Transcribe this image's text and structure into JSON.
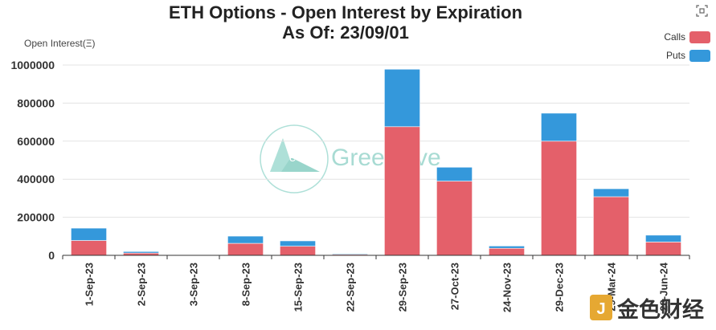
{
  "chart_data": {
    "type": "bar",
    "stacked": true,
    "title": "ETH Options - Open Interest by Expiration",
    "subtitle": "As Of: 23/09/01",
    "ylabel": "Open Interest(Ξ)",
    "xlabel": "",
    "ylim": [
      0,
      1000000
    ],
    "yticks": [
      0,
      200000,
      400000,
      600000,
      800000,
      1000000
    ],
    "grid": true,
    "legend_position": "top-right",
    "categories": [
      "1-Sep-23",
      "2-Sep-23",
      "3-Sep-23",
      "8-Sep-23",
      "15-Sep-23",
      "22-Sep-23",
      "29-Sep-23",
      "27-Oct-23",
      "24-Nov-23",
      "29-Dec-23",
      "29-Mar-24",
      "28-Jun-24"
    ],
    "series": [
      {
        "name": "Calls",
        "color": "#e4606a",
        "values": [
          78000,
          12000,
          2000,
          63000,
          48000,
          5000,
          676000,
          390000,
          37000,
          600000,
          308000,
          70000
        ]
      },
      {
        "name": "Puts",
        "color": "#3498db",
        "values": [
          65000,
          8000,
          2000,
          38000,
          28000,
          4000,
          302000,
          73000,
          12000,
          147000,
          42000,
          36000
        ]
      }
    ]
  },
  "watermark": {
    "text": "GreekLive",
    "symbol": "e"
  },
  "brand_logo": {
    "text": "金色财经",
    "symbol": "J"
  },
  "toolbox": {
    "icon": "fullscreen-icon"
  }
}
